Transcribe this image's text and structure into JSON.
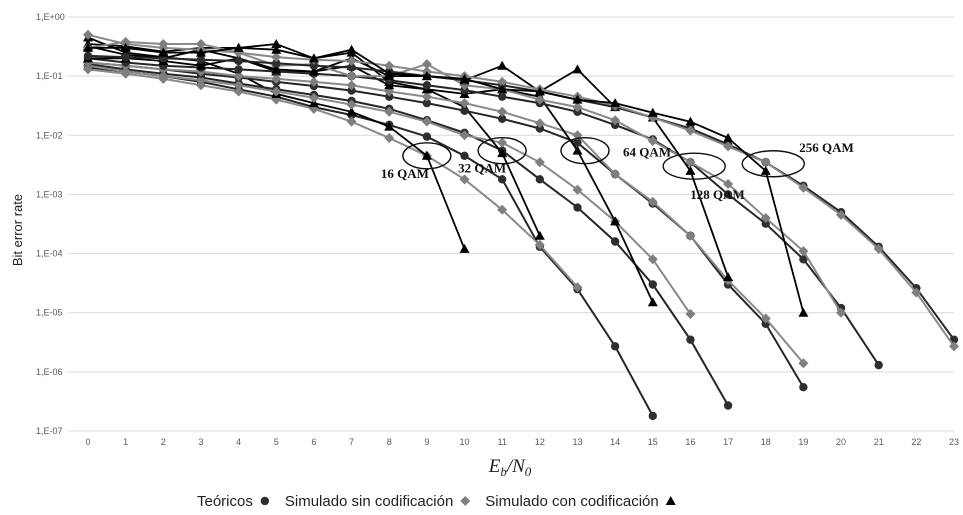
{
  "chart_data": {
    "type": "line",
    "xlabel": "E",
    "xlabel_sub1": "b",
    "xlabel_slash": "/N",
    "xlabel_sub2": "0",
    "ylabel": "Bit error rate",
    "y_scale": "log",
    "ylim": [
      1e-07,
      1
    ],
    "xlim": [
      0,
      23
    ],
    "grid": true,
    "x_ticks": [
      "0",
      "1",
      "2",
      "3",
      "4",
      "5",
      "6",
      "7",
      "8",
      "9",
      "10",
      "11",
      "12",
      "13",
      "14",
      "15",
      "16",
      "17",
      "18",
      "19",
      "20",
      "21",
      "22",
      "23"
    ],
    "y_ticks": [
      {
        "value": 1,
        "label": "1,E+00"
      },
      {
        "value": 0.1,
        "label": "1,E-01"
      },
      {
        "value": 0.01,
        "label": "1,E-02"
      },
      {
        "value": 0.001,
        "label": "1,E-03"
      },
      {
        "value": 0.0001,
        "label": "1,E-04"
      },
      {
        "value": 1e-05,
        "label": "1,E-05"
      },
      {
        "value": 1e-06,
        "label": "1,E-06"
      },
      {
        "value": 1e-07,
        "label": "1,E-07"
      }
    ],
    "legend": {
      "placement": "bottom-center",
      "items": [
        {
          "label": "Teóricos",
          "marker": "circle"
        },
        {
          "label": "Simulado sin codificación",
          "marker": "diamond"
        },
        {
          "label": "Simulado con codificación",
          "marker": "triangle"
        }
      ]
    },
    "annotations": [
      {
        "text": "16 QAM",
        "x": 9.0,
        "y": 0.0045
      },
      {
        "text": "32 QAM",
        "x": 11.0,
        "y": 0.0055
      },
      {
        "text": "64 QAM",
        "x": 13.2,
        "y": 0.0055
      },
      {
        "text": "128 QAM",
        "x": 16.1,
        "y": 0.003
      },
      {
        "text": "256 QAM",
        "x": 18.2,
        "y": 0.0033
      }
    ],
    "marker_colors": {
      "circle": "#2e2e2e",
      "diamond": "#7f7f7f",
      "triangle": "#000000"
    },
    "series": [
      {
        "group": "16 QAM",
        "marker": "circle",
        "x": [
          0,
          1,
          2,
          3,
          4,
          5,
          6,
          7,
          8,
          9,
          10,
          11,
          12,
          13,
          14,
          15
        ],
        "values": [
          0.14,
          0.12,
          0.1,
          0.08,
          0.06,
          0.045,
          0.03,
          0.022,
          0.015,
          0.0095,
          0.0045,
          0.0018,
          0.00013,
          2.5e-05,
          2.7e-06,
          1.8e-07
        ]
      },
      {
        "group": "16 QAM",
        "marker": "diamond",
        "x": [
          0,
          1,
          2,
          3,
          4,
          5,
          6,
          7,
          8,
          9,
          10,
          11,
          12,
          13
        ],
        "values": [
          0.13,
          0.11,
          0.09,
          0.07,
          0.055,
          0.04,
          0.028,
          0.017,
          0.009,
          0.0045,
          0.0018,
          0.00055,
          0.00014,
          2.7e-05
        ]
      },
      {
        "group": "16 QAM",
        "marker": "triangle",
        "x": [
          0,
          1,
          2,
          3,
          4,
          5,
          6,
          7,
          8,
          9,
          10
        ],
        "values": [
          0.45,
          0.25,
          0.21,
          0.18,
          0.11,
          0.05,
          0.035,
          0.025,
          0.014,
          0.0045,
          0.00012
        ]
      },
      {
        "group": "32 QAM",
        "marker": "circle",
        "x": [
          0,
          1,
          2,
          3,
          4,
          5,
          6,
          7,
          8,
          9,
          10,
          11,
          12,
          13,
          14,
          15,
          16,
          17
        ],
        "values": [
          0.16,
          0.13,
          0.11,
          0.095,
          0.075,
          0.06,
          0.048,
          0.038,
          0.028,
          0.018,
          0.011,
          0.0055,
          0.0018,
          0.0006,
          0.00016,
          3e-05,
          3.5e-06,
          2.7e-07
        ]
      },
      {
        "group": "32 QAM",
        "marker": "diamond",
        "x": [
          0,
          1,
          2,
          3,
          4,
          5,
          6,
          7,
          8,
          9,
          10,
          11,
          12,
          13,
          14,
          15,
          16
        ],
        "values": [
          0.15,
          0.12,
          0.1,
          0.085,
          0.07,
          0.055,
          0.043,
          0.033,
          0.025,
          0.017,
          0.01,
          0.0075,
          0.0035,
          0.0012,
          0.00035,
          8e-05,
          9.5e-06
        ]
      },
      {
        "group": "32 QAM",
        "marker": "triangle",
        "x": [
          0,
          1,
          2,
          3,
          4,
          5,
          6,
          7,
          8,
          9,
          10,
          11,
          12
        ],
        "values": [
          0.35,
          0.32,
          0.26,
          0.3,
          0.3,
          0.35,
          0.2,
          0.25,
          0.08,
          0.06,
          0.03,
          0.005,
          0.0002
        ]
      },
      {
        "group": "64 QAM",
        "marker": "circle",
        "x": [
          0,
          1,
          2,
          3,
          4,
          5,
          6,
          7,
          8,
          9,
          10,
          11,
          12,
          13,
          14,
          15,
          16,
          17,
          18,
          19
        ],
        "values": [
          0.17,
          0.15,
          0.13,
          0.11,
          0.095,
          0.08,
          0.068,
          0.057,
          0.045,
          0.035,
          0.026,
          0.019,
          0.013,
          0.0075,
          0.0022,
          0.0007,
          0.0002,
          3e-05,
          6.5e-06,
          5.5e-07
        ]
      },
      {
        "group": "64 QAM",
        "marker": "diamond",
        "x": [
          0,
          1,
          2,
          3,
          4,
          5,
          6,
          7,
          8,
          9,
          10,
          11,
          12,
          13,
          14,
          15,
          16,
          17,
          18,
          19
        ],
        "values": [
          0.17,
          0.15,
          0.13,
          0.12,
          0.1,
          0.09,
          0.08,
          0.07,
          0.055,
          0.045,
          0.035,
          0.025,
          0.016,
          0.01,
          0.0022,
          0.00075,
          0.0002,
          3.5e-05,
          8e-06,
          1.4e-06
        ]
      },
      {
        "group": "64 QAM",
        "marker": "triangle",
        "x": [
          0,
          1,
          2,
          3,
          4,
          5,
          6,
          7,
          8,
          9,
          10,
          11,
          12,
          13,
          14,
          15
        ],
        "values": [
          0.32,
          0.23,
          0.2,
          0.28,
          0.2,
          0.12,
          0.12,
          0.15,
          0.07,
          0.06,
          0.05,
          0.06,
          0.045,
          0.0055,
          0.00035,
          1.5e-05
        ]
      },
      {
        "group": "128 QAM",
        "marker": "circle",
        "x": [
          0,
          1,
          2,
          3,
          4,
          5,
          6,
          7,
          8,
          9,
          10,
          11,
          12,
          13,
          14,
          15,
          16,
          17,
          18,
          19,
          20,
          21
        ],
        "values": [
          0.2,
          0.17,
          0.15,
          0.14,
          0.13,
          0.12,
          0.11,
          0.1,
          0.085,
          0.07,
          0.058,
          0.045,
          0.035,
          0.025,
          0.015,
          0.0085,
          0.0035,
          0.001,
          0.00032,
          8e-05,
          1.2e-05,
          1.3e-06
        ]
      },
      {
        "group": "128 QAM",
        "marker": "diamond",
        "x": [
          0,
          1,
          2,
          3,
          4,
          5,
          6,
          7,
          8,
          9,
          10,
          11,
          12,
          13,
          14,
          15,
          16,
          17,
          18,
          19,
          20
        ],
        "values": [
          0.3,
          0.38,
          0.35,
          0.35,
          0.25,
          0.15,
          0.16,
          0.1,
          0.1,
          0.16,
          0.07,
          0.06,
          0.04,
          0.03,
          0.018,
          0.008,
          0.0035,
          0.0015,
          0.0004,
          0.00011,
          1e-05
        ]
      },
      {
        "group": "128 QAM",
        "marker": "triangle",
        "x": [
          0,
          1,
          2,
          3,
          4,
          5,
          6,
          7,
          8,
          9,
          10,
          11,
          12,
          13,
          14,
          15,
          16,
          17
        ],
        "values": [
          0.2,
          0.2,
          0.18,
          0.15,
          0.2,
          0.13,
          0.12,
          0.2,
          0.1,
          0.1,
          0.085,
          0.15,
          0.055,
          0.13,
          0.03,
          0.02,
          0.0025,
          4e-05
        ]
      },
      {
        "group": "256 QAM",
        "marker": "circle",
        "x": [
          0,
          1,
          2,
          3,
          4,
          5,
          6,
          7,
          8,
          9,
          10,
          11,
          12,
          13,
          14,
          15,
          16,
          17,
          18,
          19,
          20,
          21,
          22,
          23
        ],
        "values": [
          0.22,
          0.21,
          0.2,
          0.19,
          0.18,
          0.165,
          0.15,
          0.14,
          0.12,
          0.1,
          0.085,
          0.07,
          0.055,
          0.04,
          0.03,
          0.02,
          0.013,
          0.007,
          0.0035,
          0.0014,
          0.0005,
          0.00013,
          2.6e-05,
          3.5e-06
        ]
      },
      {
        "group": "256 QAM",
        "marker": "diamond",
        "x": [
          0,
          1,
          2,
          3,
          4,
          5,
          6,
          7,
          8,
          9,
          10,
          11,
          12,
          13,
          14,
          15,
          16,
          17,
          18,
          19,
          20,
          21,
          22,
          23
        ],
        "values": [
          0.5,
          0.35,
          0.3,
          0.28,
          0.25,
          0.21,
          0.19,
          0.18,
          0.15,
          0.12,
          0.1,
          0.08,
          0.06,
          0.045,
          0.032,
          0.02,
          0.012,
          0.0065,
          0.0035,
          0.0013,
          0.00045,
          0.00012,
          2.2e-05,
          2.7e-06
        ]
      },
      {
        "group": "256 QAM",
        "marker": "triangle",
        "x": [
          0,
          1,
          2,
          3,
          4,
          5,
          6,
          7,
          8,
          9,
          10,
          11,
          12,
          13,
          14,
          15,
          16,
          17,
          18,
          19
        ],
        "values": [
          0.3,
          0.3,
          0.25,
          0.25,
          0.3,
          0.28,
          0.2,
          0.28,
          0.11,
          0.1,
          0.09,
          0.06,
          0.055,
          0.04,
          0.035,
          0.024,
          0.017,
          0.009,
          0.0025,
          1e-05
        ]
      }
    ]
  }
}
